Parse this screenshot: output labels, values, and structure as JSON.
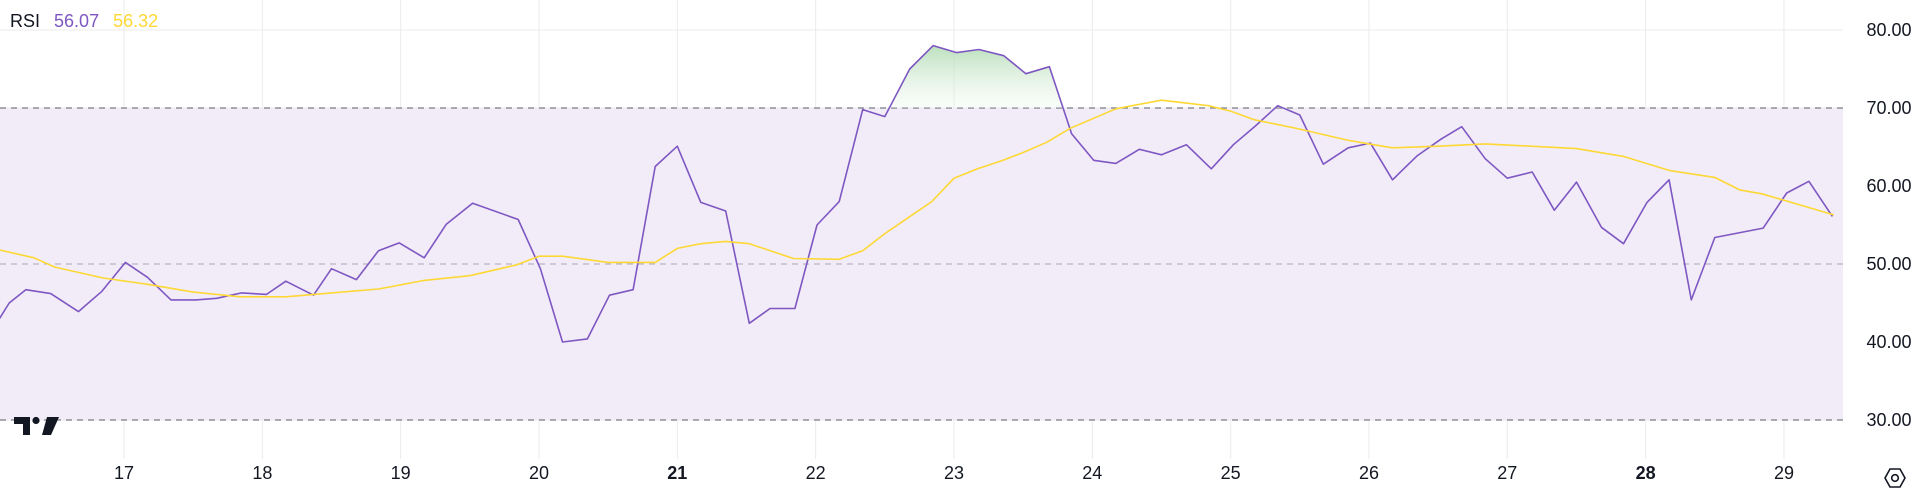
{
  "legend": {
    "indicator": "RSI",
    "rsi_value": "56.07",
    "ma_value": "56.32",
    "rsi_color": "#7e57c2",
    "ma_color": "#fdd835"
  },
  "icons": {
    "logo": "tradingview-logo-icon",
    "settings": "settings-hexagon-icon"
  },
  "chart_data": {
    "type": "line",
    "title": "",
    "xlabel": "",
    "ylabel": "",
    "ylim": [
      26.8,
      83.0
    ],
    "y_ticks": [
      "80.00",
      "70.00",
      "60.00",
      "50.00",
      "40.00",
      "30.00"
    ],
    "x_ticks": [
      {
        "label": "17",
        "x": 17,
        "bold": false
      },
      {
        "label": "18",
        "x": 18,
        "bold": false
      },
      {
        "label": "19",
        "x": 19,
        "bold": false
      },
      {
        "label": "20",
        "x": 20,
        "bold": false
      },
      {
        "label": "21",
        "x": 21,
        "bold": true
      },
      {
        "label": "22",
        "x": 22,
        "bold": false
      },
      {
        "label": "23",
        "x": 23,
        "bold": false
      },
      {
        "label": "24",
        "x": 24,
        "bold": false
      },
      {
        "label": "25",
        "x": 25,
        "bold": false
      },
      {
        "label": "26",
        "x": 26,
        "bold": false
      },
      {
        "label": "27",
        "x": 27,
        "bold": false
      },
      {
        "label": "28",
        "x": 28,
        "bold": true
      },
      {
        "label": "29",
        "x": 29,
        "bold": false
      }
    ],
    "xlim": [
      16.1,
      29.4
    ],
    "bands": {
      "upper": 70,
      "middle": 50,
      "lower": 30,
      "fill": "#f2ecf8"
    },
    "series": [
      {
        "color": "#7e57c2",
        "points": [
          [
            16.1,
            43.0
          ],
          [
            16.17,
            45.0
          ],
          [
            16.29,
            46.7
          ],
          [
            16.47,
            46.2
          ],
          [
            16.67,
            43.9
          ],
          [
            16.84,
            46.5
          ],
          [
            17.01,
            50.2
          ],
          [
            17.17,
            48.3
          ],
          [
            17.34,
            45.4
          ],
          [
            17.52,
            45.4
          ],
          [
            17.67,
            45.6
          ],
          [
            17.85,
            46.3
          ],
          [
            18.03,
            46.1
          ],
          [
            18.17,
            47.8
          ],
          [
            18.37,
            46.0
          ],
          [
            18.5,
            49.4
          ],
          [
            18.68,
            48.0
          ],
          [
            18.84,
            51.7
          ],
          [
            18.99,
            52.7
          ],
          [
            19.17,
            50.8
          ],
          [
            19.33,
            55.1
          ],
          [
            19.52,
            57.8
          ],
          [
            19.85,
            55.7
          ],
          [
            20.01,
            49.4
          ],
          [
            20.17,
            40.0
          ],
          [
            20.35,
            40.4
          ],
          [
            20.51,
            46.0
          ],
          [
            20.68,
            46.7
          ],
          [
            20.84,
            62.5
          ],
          [
            21.0,
            65.1
          ],
          [
            21.17,
            57.9
          ],
          [
            21.35,
            56.8
          ],
          [
            21.52,
            42.4
          ],
          [
            21.67,
            44.3
          ],
          [
            21.85,
            44.3
          ],
          [
            22.01,
            55.0
          ],
          [
            22.17,
            58.0
          ],
          [
            22.34,
            69.8
          ],
          [
            22.5,
            68.9
          ],
          [
            22.68,
            75.0
          ],
          [
            22.85,
            78.0
          ],
          [
            23.02,
            77.1
          ],
          [
            23.18,
            77.5
          ],
          [
            23.36,
            76.7
          ],
          [
            23.52,
            74.4
          ],
          [
            23.69,
            75.3
          ],
          [
            23.85,
            66.7
          ],
          [
            24.01,
            63.3
          ],
          [
            24.17,
            62.9
          ],
          [
            24.34,
            64.7
          ],
          [
            24.5,
            64.0
          ],
          [
            24.68,
            65.3
          ],
          [
            24.86,
            62.2
          ],
          [
            25.02,
            65.3
          ],
          [
            25.18,
            67.7
          ],
          [
            25.34,
            70.3
          ],
          [
            25.5,
            69.1
          ],
          [
            25.67,
            62.8
          ],
          [
            25.85,
            64.9
          ],
          [
            26.01,
            65.5
          ],
          [
            26.17,
            60.8
          ],
          [
            26.35,
            63.9
          ],
          [
            26.52,
            66.0
          ],
          [
            26.67,
            67.6
          ],
          [
            26.84,
            63.5
          ],
          [
            27.0,
            61.0
          ],
          [
            27.18,
            61.8
          ],
          [
            27.34,
            56.9
          ],
          [
            27.5,
            60.5
          ],
          [
            27.68,
            54.7
          ],
          [
            27.84,
            52.6
          ],
          [
            28.01,
            57.9
          ],
          [
            28.17,
            60.8
          ],
          [
            28.33,
            45.4
          ],
          [
            28.5,
            53.4
          ],
          [
            28.85,
            54.6
          ],
          [
            29.02,
            59.1
          ],
          [
            29.18,
            60.6
          ],
          [
            29.35,
            56.1
          ]
        ]
      },
      {
        "color": "#fdd835",
        "points": [
          [
            16.1,
            51.8
          ],
          [
            16.35,
            50.8
          ],
          [
            16.5,
            49.6
          ],
          [
            16.85,
            48.2
          ],
          [
            17.17,
            47.4
          ],
          [
            17.5,
            46.4
          ],
          [
            17.84,
            45.8
          ],
          [
            18.17,
            45.8
          ],
          [
            18.5,
            46.3
          ],
          [
            18.84,
            46.8
          ],
          [
            19.17,
            47.9
          ],
          [
            19.5,
            48.5
          ],
          [
            19.84,
            49.9
          ],
          [
            20.0,
            51.0
          ],
          [
            20.17,
            51.0
          ],
          [
            20.5,
            50.2
          ],
          [
            20.84,
            50.2
          ],
          [
            21.0,
            52.0
          ],
          [
            21.17,
            52.6
          ],
          [
            21.35,
            52.9
          ],
          [
            21.52,
            52.6
          ],
          [
            21.84,
            50.7
          ],
          [
            22.17,
            50.6
          ],
          [
            22.34,
            51.7
          ],
          [
            22.5,
            53.9
          ],
          [
            22.84,
            58.0
          ],
          [
            23.0,
            61.0
          ],
          [
            23.17,
            62.2
          ],
          [
            23.34,
            63.2
          ],
          [
            23.5,
            64.3
          ],
          [
            23.67,
            65.6
          ],
          [
            23.84,
            67.4
          ],
          [
            24.17,
            69.9
          ],
          [
            24.5,
            71.0
          ],
          [
            24.84,
            70.3
          ],
          [
            25.0,
            69.6
          ],
          [
            25.17,
            68.5
          ],
          [
            25.5,
            67.3
          ],
          [
            25.84,
            65.9
          ],
          [
            26.0,
            65.4
          ],
          [
            26.17,
            64.9
          ],
          [
            26.5,
            65.1
          ],
          [
            26.84,
            65.4
          ],
          [
            27.17,
            65.1
          ],
          [
            27.5,
            64.8
          ],
          [
            27.84,
            63.8
          ],
          [
            28.17,
            62.0
          ],
          [
            28.5,
            61.1
          ],
          [
            28.68,
            59.5
          ],
          [
            28.84,
            59.0
          ],
          [
            29.17,
            57.3
          ],
          [
            29.36,
            56.3
          ]
        ]
      }
    ],
    "overbought_fill": {
      "color": "#c8e6c9",
      "threshold": 70
    }
  }
}
